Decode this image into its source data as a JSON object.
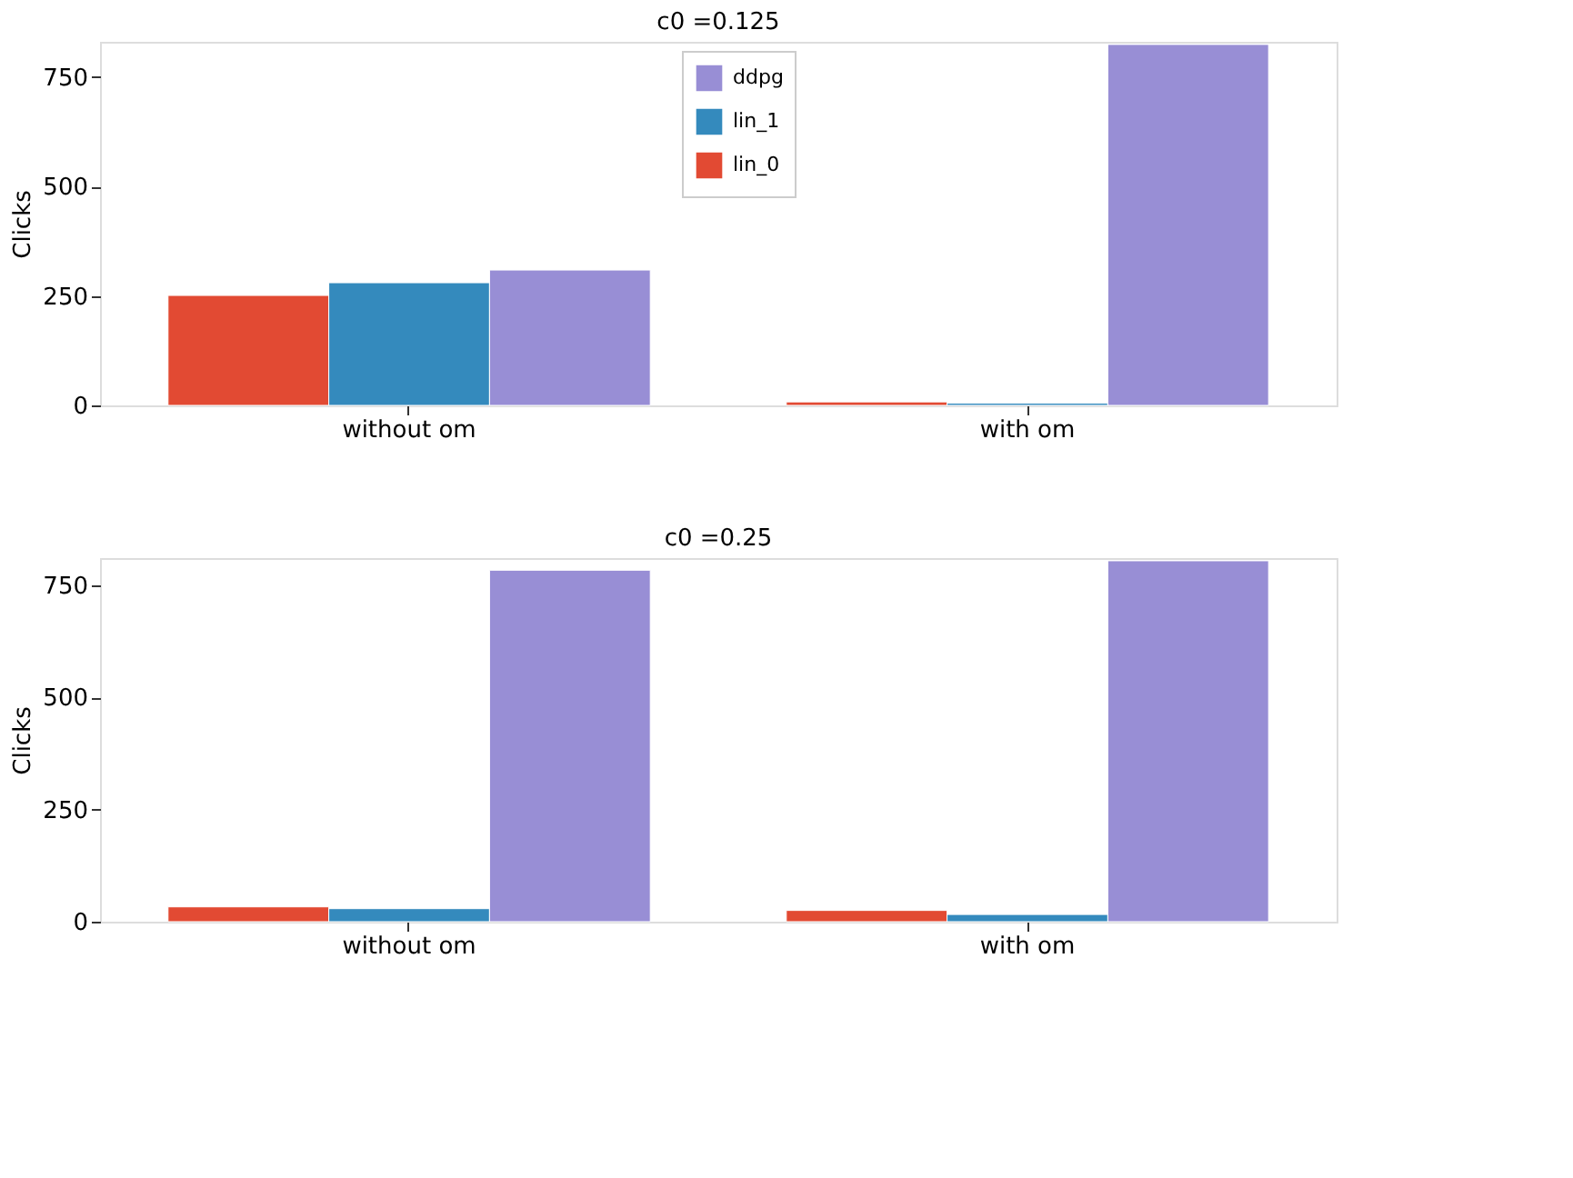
{
  "chart_data": [
    {
      "type": "bar",
      "title": "c0 =0.125",
      "ylabel": "Clicks",
      "categories": [
        "without om",
        "with om"
      ],
      "series": [
        {
          "name": "lin_0",
          "color": "#e24a33",
          "values": [
            251,
            8
          ]
        },
        {
          "name": "lin_1",
          "color": "#348abd",
          "values": [
            280,
            5
          ]
        },
        {
          "name": "ddpg",
          "color": "#988ed5",
          "values": [
            309,
            824
          ]
        }
      ],
      "ylim": [
        0,
        830
      ],
      "yticks": [
        0,
        250,
        500,
        750
      ],
      "legend": "top",
      "grid": false
    },
    {
      "type": "bar",
      "title": "c0 =0.25",
      "ylabel": "Clicks",
      "categories": [
        "without om",
        "with om"
      ],
      "series": [
        {
          "name": "lin_0",
          "color": "#e24a33",
          "values": [
            33,
            25
          ]
        },
        {
          "name": "lin_1",
          "color": "#348abd",
          "values": [
            29,
            16
          ]
        },
        {
          "name": "ddpg",
          "color": "#988ed5",
          "values": [
            783,
            804
          ]
        }
      ],
      "ylim": [
        0,
        810
      ],
      "yticks": [
        0,
        250,
        500,
        750
      ],
      "legend": "top",
      "grid": false
    }
  ]
}
